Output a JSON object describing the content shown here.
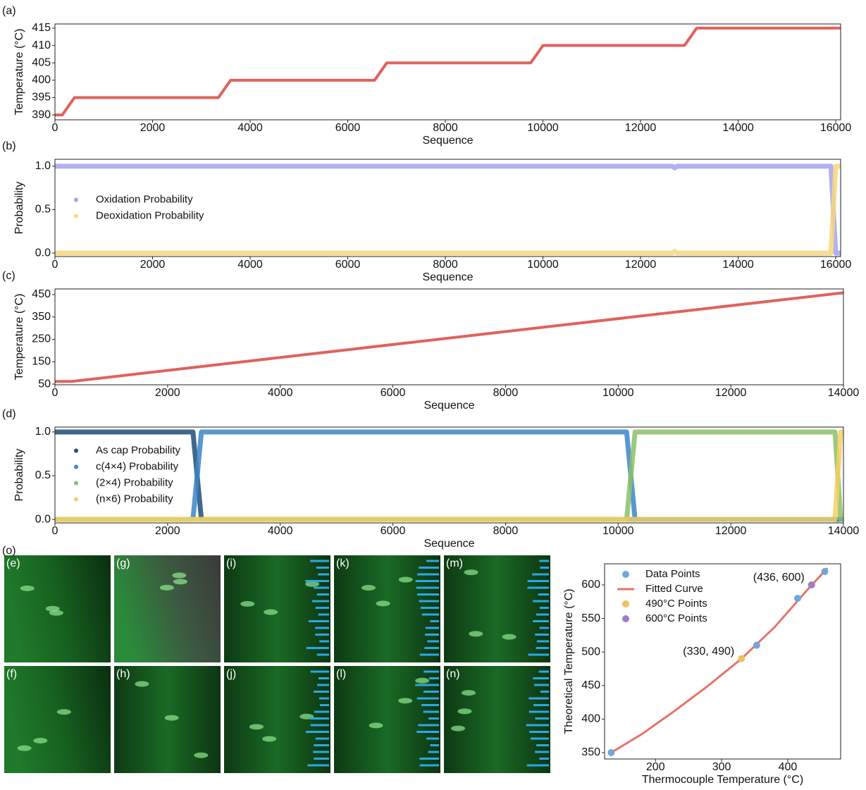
{
  "chart_data": [
    {
      "type": "line",
      "label": "(a)",
      "xlabel": "Sequence",
      "ylabel": "Temperature (°C)",
      "x": [
        0,
        150,
        400,
        3350,
        3600,
        6550,
        6800,
        9750,
        10000,
        12900,
        13150,
        16100
      ],
      "series": [
        {
          "color": "#e0625c",
          "values": [
            390,
            390,
            395,
            395,
            400,
            400,
            405,
            405,
            410,
            410,
            415,
            415
          ]
        }
      ],
      "xlim": [
        0,
        16100
      ],
      "ylim": [
        388.6,
        416.2
      ],
      "xticks": [
        0,
        2000,
        4000,
        6000,
        8000,
        10000,
        12000,
        14000,
        16000
      ],
      "yticks": [
        390,
        395,
        400,
        405,
        410,
        415
      ]
    },
    {
      "type": "line",
      "label": "(b)",
      "xlabel": "Sequence",
      "ylabel": "Probability",
      "x": [
        0,
        12650,
        12700,
        12750,
        15900,
        16000,
        16100
      ],
      "series": [
        {
          "name": "Oxidation Probability",
          "color": "#a3a3ee",
          "values": [
            1,
            1,
            0.98,
            1,
            1,
            0,
            0
          ]
        },
        {
          "name": "Deoxidation Probability",
          "color": "#f7d77c",
          "values": [
            0,
            0,
            0.02,
            0,
            0,
            1,
            1
          ]
        }
      ],
      "xlim": [
        0,
        16100
      ],
      "ylim": [
        -0.04,
        1.08
      ],
      "xticks": [
        0,
        2000,
        4000,
        6000,
        8000,
        10000,
        12000,
        14000,
        16000
      ],
      "yticks": [
        {
          "value": 0,
          "label": "0.0"
        },
        0.5,
        {
          "value": 1,
          "label": "1.0"
        }
      ],
      "legend": "center left"
    },
    {
      "type": "line",
      "label": "(c)",
      "xlabel": "Sequence",
      "ylabel": "Temperature (°C)",
      "x": [
        0,
        300,
        14000
      ],
      "series": [
        {
          "color": "#e0625c",
          "values": [
            62,
            62,
            458
          ]
        }
      ],
      "xlim": [
        0,
        14000
      ],
      "ylim": [
        47,
        475
      ],
      "xticks": [
        0,
        2000,
        4000,
        6000,
        8000,
        10000,
        12000,
        14000
      ],
      "yticks": [
        50,
        150,
        250,
        350,
        450
      ]
    },
    {
      "type": "line",
      "label": "(d)",
      "xlabel": "Sequence",
      "ylabel": "Probability",
      "x": [
        0,
        2450,
        2600,
        10150,
        10300,
        13850,
        13950,
        14000
      ],
      "series": [
        {
          "name": "As cap Probability",
          "color": "#1f4e79",
          "values": [
            1,
            1,
            0,
            0,
            0,
            0,
            0,
            0
          ]
        },
        {
          "name": "c(4×4) Probability",
          "color": "#3a86c8",
          "values": [
            0,
            0,
            1,
            1,
            0,
            0,
            0,
            0
          ]
        },
        {
          "name": "(2×4) Probability",
          "color": "#8cc06a",
          "values": [
            0,
            0,
            0,
            0,
            1,
            1,
            0,
            0
          ]
        },
        {
          "name": "(n×6) Probability",
          "color": "#f5d061",
          "values": [
            0,
            0,
            0,
            0,
            0,
            0,
            1,
            1
          ]
        }
      ],
      "xlim": [
        0,
        14000
      ],
      "ylim": [
        -0.04,
        1.056
      ],
      "xticks": [
        0,
        2000,
        4000,
        6000,
        8000,
        10000,
        12000,
        14000
      ],
      "yticks": [
        {
          "value": 0,
          "label": "0.0"
        },
        0.5,
        {
          "value": 1,
          "label": "1.0"
        }
      ],
      "legend": "center left"
    },
    {
      "type": "scatter",
      "label": "(o)",
      "xlabel": "Thermocouple Temperature (°C)",
      "ylabel": "Theoretical Temperature (°C)",
      "series": [
        {
          "name": "Data Points",
          "color": "#6fa8dc",
          "mode": "scatter",
          "x": [
            133,
            353,
            415,
            456
          ],
          "values": [
            350,
            510,
            580,
            620
          ]
        },
        {
          "name": "Fitted Curve",
          "color": "#e8736a",
          "mode": "line",
          "x": [
            133,
            180,
            230,
            280,
            330,
            380,
            430,
            460
          ],
          "values": [
            350,
            378,
            413,
            450,
            490,
            537,
            593,
            625
          ]
        },
        {
          "name": "490°C Points",
          "color": "#f0c05a",
          "mode": "scatter",
          "x": [
            330
          ],
          "values": [
            490
          ]
        },
        {
          "name": "600°C Points",
          "color": "#a07cc5",
          "mode": "scatter",
          "x": [
            436
          ],
          "values": [
            600
          ]
        }
      ],
      "annotations": [
        {
          "text": "(330, 490)",
          "series": 2
        },
        {
          "text": "(436, 600)",
          "series": 3
        }
      ],
      "xlim": [
        123,
        480
      ],
      "ylim": [
        340.5,
        631.5
      ],
      "xticks": [
        200,
        300,
        400
      ],
      "yticks": [
        350,
        400,
        450,
        500,
        550,
        600
      ],
      "legend": "upper left"
    }
  ],
  "images": {
    "labels": [
      "(e)",
      "(f)",
      "(g)",
      "(h)",
      "(i)",
      "(j)",
      "(k)",
      "(l)",
      "(m)",
      "(n)"
    ]
  }
}
